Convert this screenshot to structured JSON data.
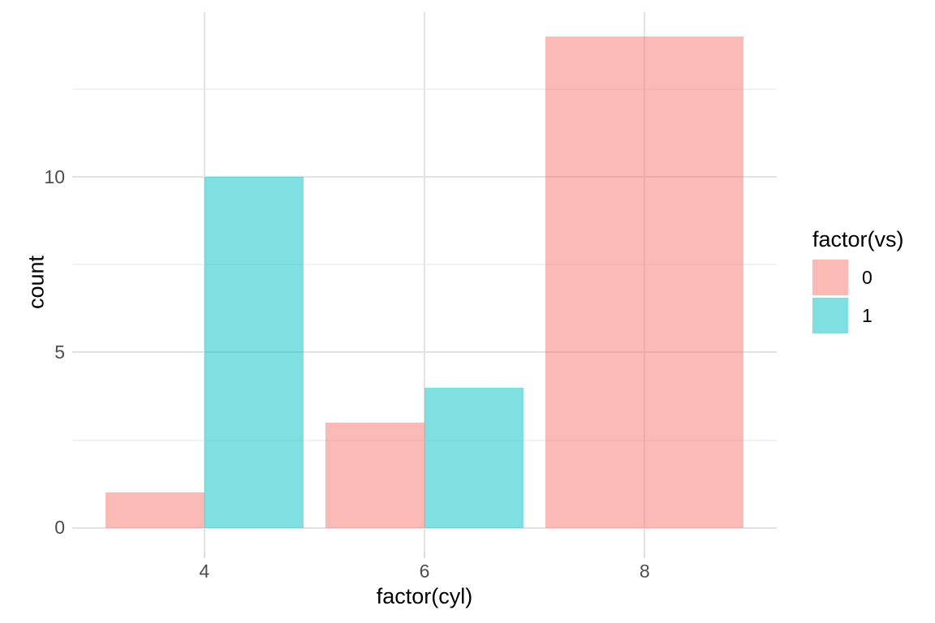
{
  "chart_data": {
    "type": "bar",
    "mode": "dodge",
    "categories": [
      "4",
      "6",
      "8"
    ],
    "series": [
      {
        "name": "0",
        "color": "#F8766D",
        "values": [
          1,
          3,
          14
        ]
      },
      {
        "name": "1",
        "color": "#00BFC4",
        "values": [
          10,
          4,
          null
        ]
      }
    ],
    "fill_alpha": 0.5,
    "title": "",
    "xlabel": "factor(cyl)",
    "ylabel": "count",
    "legend_title": "factor(vs)",
    "legend_position": "right",
    "y_ticks": [
      0,
      5,
      10
    ],
    "y_tick_labels": [
      "0",
      "5",
      "10"
    ],
    "y_minor_ticks": [
      2.5,
      7.5,
      12.5
    ],
    "ylim": [
      -0.7,
      14.7
    ],
    "bar_group_width": 0.9,
    "grid": true,
    "colors": {
      "grid_major": "#e3e3e3",
      "grid_minor": "#f2f2f2",
      "tick_text": "#4d4d4d",
      "title_text": "#000000",
      "background": "#ffffff"
    }
  }
}
